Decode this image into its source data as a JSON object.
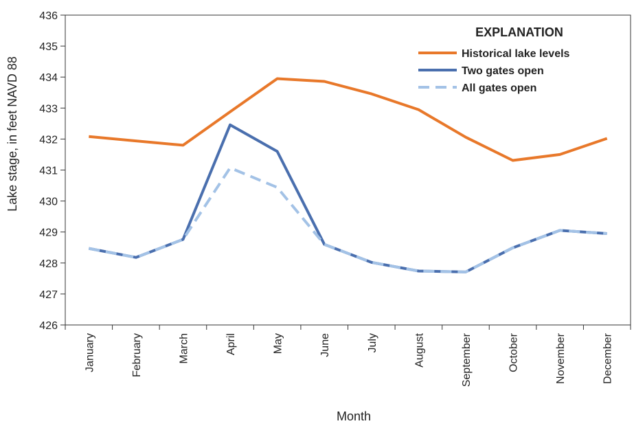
{
  "chart_data": {
    "type": "line",
    "title": "",
    "xlabel": "Month",
    "ylabel": "Lake stage, in feet NAVD 88",
    "categories": [
      "January",
      "February",
      "March",
      "April",
      "May",
      "June",
      "July",
      "August",
      "September",
      "October",
      "November",
      "December"
    ],
    "ylim": [
      426,
      436
    ],
    "yticks": [
      "426",
      "427",
      "428",
      "429",
      "430",
      "431",
      "432",
      "433",
      "434",
      "435",
      "436"
    ],
    "grid": false,
    "legend_title": "EXPLANATION",
    "legend_position": "top-right",
    "series": [
      {
        "name": "Historical lake levels",
        "color": "#e8782a",
        "dash": "solid",
        "values": [
          432.08,
          431.94,
          431.8,
          432.88,
          433.95,
          433.86,
          433.46,
          432.95,
          432.06,
          431.31,
          431.5,
          432.02
        ]
      },
      {
        "name": "Two gates open",
        "color": "#4a6fae",
        "dash": "solid",
        "values": [
          428.47,
          428.18,
          428.76,
          432.46,
          431.6,
          428.6,
          428.02,
          427.74,
          427.71,
          428.49,
          429.05,
          428.95
        ]
      },
      {
        "name": "All gates open",
        "color": "#a3c2e6",
        "dash": "dashed",
        "values": [
          428.47,
          428.18,
          428.76,
          431.07,
          430.44,
          428.6,
          428.02,
          427.74,
          427.71,
          428.49,
          429.05,
          428.95
        ]
      }
    ]
  }
}
